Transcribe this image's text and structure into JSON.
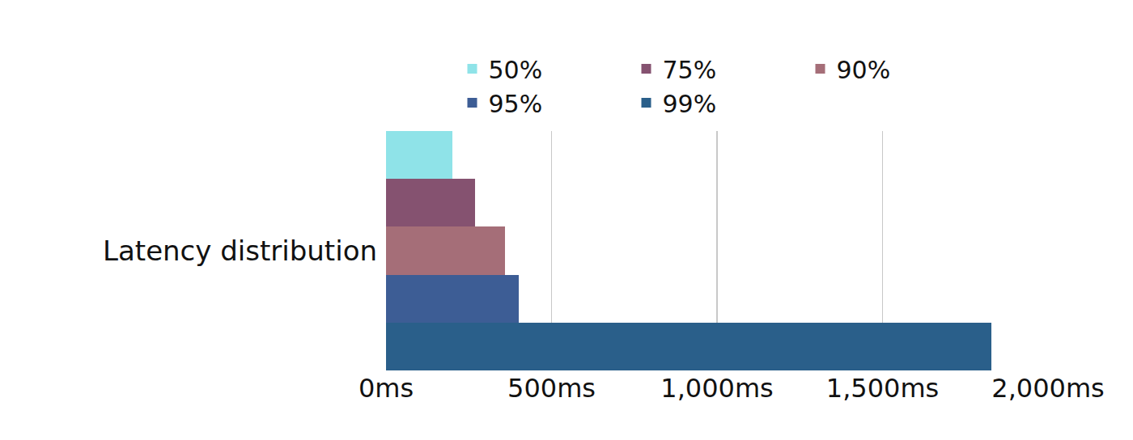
{
  "chart_data": {
    "type": "bar",
    "orientation": "horizontal",
    "categories": [
      "Latency distribution"
    ],
    "series": [
      {
        "name": "50%",
        "color": "#8fe3e8",
        "values": [
          200
        ]
      },
      {
        "name": "75%",
        "color": "#855270",
        "values": [
          270
        ]
      },
      {
        "name": "90%",
        "color": "#a56e78",
        "values": [
          360
        ]
      },
      {
        "name": "95%",
        "color": "#3d5d95",
        "values": [
          400
        ]
      },
      {
        "name": "99%",
        "color": "#2a5f8a",
        "values": [
          1830
        ]
      }
    ],
    "xlim": [
      0,
      2000
    ],
    "xticks": [
      {
        "value": 0,
        "label": "0ms"
      },
      {
        "value": 500,
        "label": "500ms"
      },
      {
        "value": 1000,
        "label": "1,000ms"
      },
      {
        "value": 1500,
        "label": "1,500ms"
      },
      {
        "value": 2000,
        "label": "2,000ms"
      }
    ],
    "grid": true,
    "legend": "top"
  }
}
